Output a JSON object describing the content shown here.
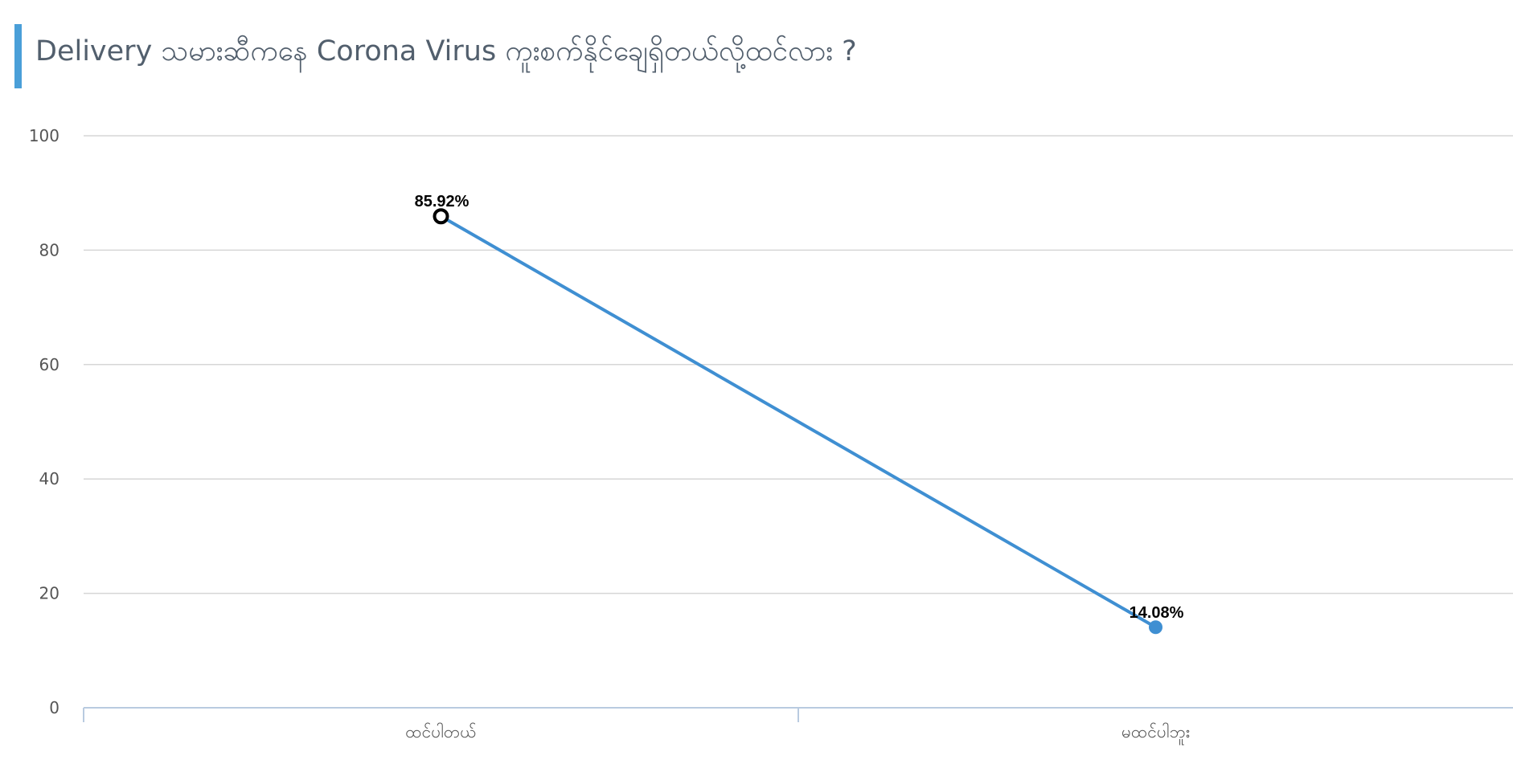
{
  "chart_data": {
    "type": "line",
    "title": "Delivery သမားဆီကနေ Corona Virus ကူးစက်နိုင်ချေရှိတယ်လို့ထင်လား ?",
    "xlabel": "",
    "ylabel": "",
    "categories": [
      "ထင်ပါတယ်",
      "မထင်ပါဘူး"
    ],
    "values": [
      85.92,
      14.08
    ],
    "data_labels": [
      "85.92%",
      "14.08%"
    ],
    "ylim": [
      0,
      100
    ],
    "yticks": [
      0,
      20,
      40,
      60,
      80,
      100
    ],
    "grid": true,
    "legend": "none",
    "colors": {
      "line": "#3f8fd2",
      "marker_first_stroke": "#000000",
      "marker_first_fill": "#ffffff",
      "marker_fill": "#3f8fd2",
      "grid": "#d6d6d6",
      "axis": "#b9cbe0",
      "accent_bar": "#4a9fd8",
      "title": "#525f6d"
    }
  }
}
